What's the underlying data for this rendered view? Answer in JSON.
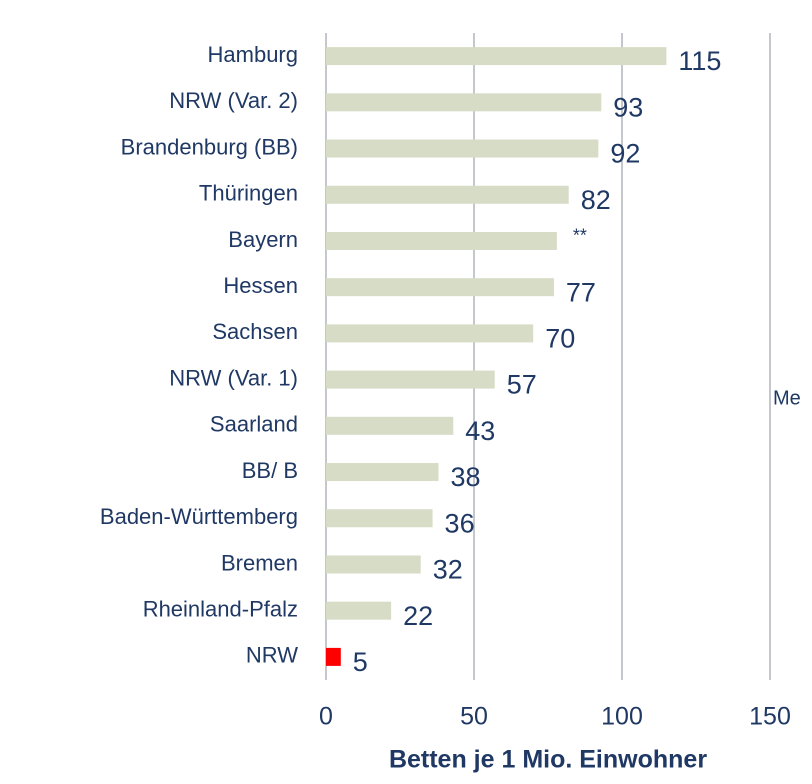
{
  "chart_data": {
    "type": "barh",
    "xlabel": "Betten je 1 Mio. Einwohner",
    "annotation": "Me",
    "categories": [
      "Hamburg",
      "NRW (Var. 2)",
      "Brandenburg (BB)",
      "Thüringen",
      "Bayern",
      "Hessen",
      "Sachsen",
      "NRW (Var. 1)",
      "Saarland",
      "BB/ B",
      "Baden-Württemberg",
      "Bremen",
      "Rheinland-Pfalz",
      "NRW"
    ],
    "values": [
      115,
      93,
      92,
      82,
      78,
      77,
      70,
      57,
      43,
      38,
      36,
      32,
      22,
      5
    ],
    "value_labels": [
      "115",
      "93",
      "92",
      "82",
      "**",
      "77",
      "70",
      "57",
      "43",
      "38",
      "36",
      "32",
      "22",
      "5"
    ],
    "colors": [
      "#d7dcc6",
      "#d7dcc6",
      "#d7dcc6",
      "#d7dcc6",
      "#d7dcc6",
      "#d7dcc6",
      "#d7dcc6",
      "#d7dcc6",
      "#d7dcc6",
      "#d7dcc6",
      "#d7dcc6",
      "#d7dcc6",
      "#d7dcc6",
      "#ff0000"
    ],
    "xlim": [
      0,
      150
    ],
    "xticks": [
      0,
      50,
      100,
      150
    ],
    "grid": true
  }
}
